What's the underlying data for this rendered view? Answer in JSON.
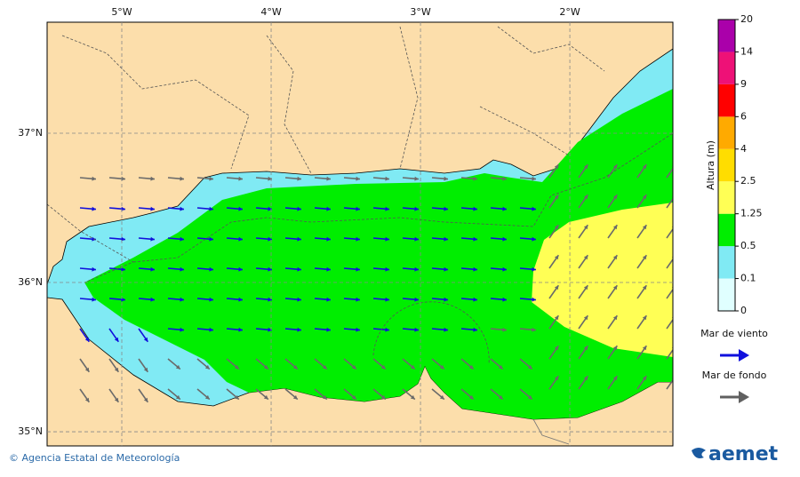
{
  "map": {
    "xlim": [
      -5.5,
      -1.31
    ],
    "ylim": [
      34.905,
      37.744
    ],
    "xticks": [
      {
        "value": -5,
        "label": "5°W"
      },
      {
        "value": -4,
        "label": "4°W"
      },
      {
        "value": -3,
        "label": "3°W"
      },
      {
        "value": -2,
        "label": "2°W"
      }
    ],
    "yticks": [
      {
        "value": 37,
        "label": "37°N"
      },
      {
        "value": 36,
        "label": "36°N"
      },
      {
        "value": 35,
        "label": "35°N"
      }
    ],
    "grid": true
  },
  "colorbar": {
    "label": "Altura (m)",
    "ticks": [
      0,
      0.1,
      0.5,
      1.25,
      2.5,
      4,
      6,
      9,
      14,
      20
    ],
    "colors": [
      "#e0ffff",
      "#80eaf4",
      "#00ee00",
      "#ffff55",
      "#ffdd00",
      "#ffaa00",
      "#ff0000",
      "#ee1177",
      "#aa00aa"
    ]
  },
  "legend": [
    {
      "label": "Mar de viento",
      "color": "#1010dd"
    },
    {
      "label": "Mar de fondo",
      "color": "#606060"
    }
  ],
  "footer": {
    "credit": "© Agencia Estatal de Meteorología",
    "logo": "aemet"
  }
}
